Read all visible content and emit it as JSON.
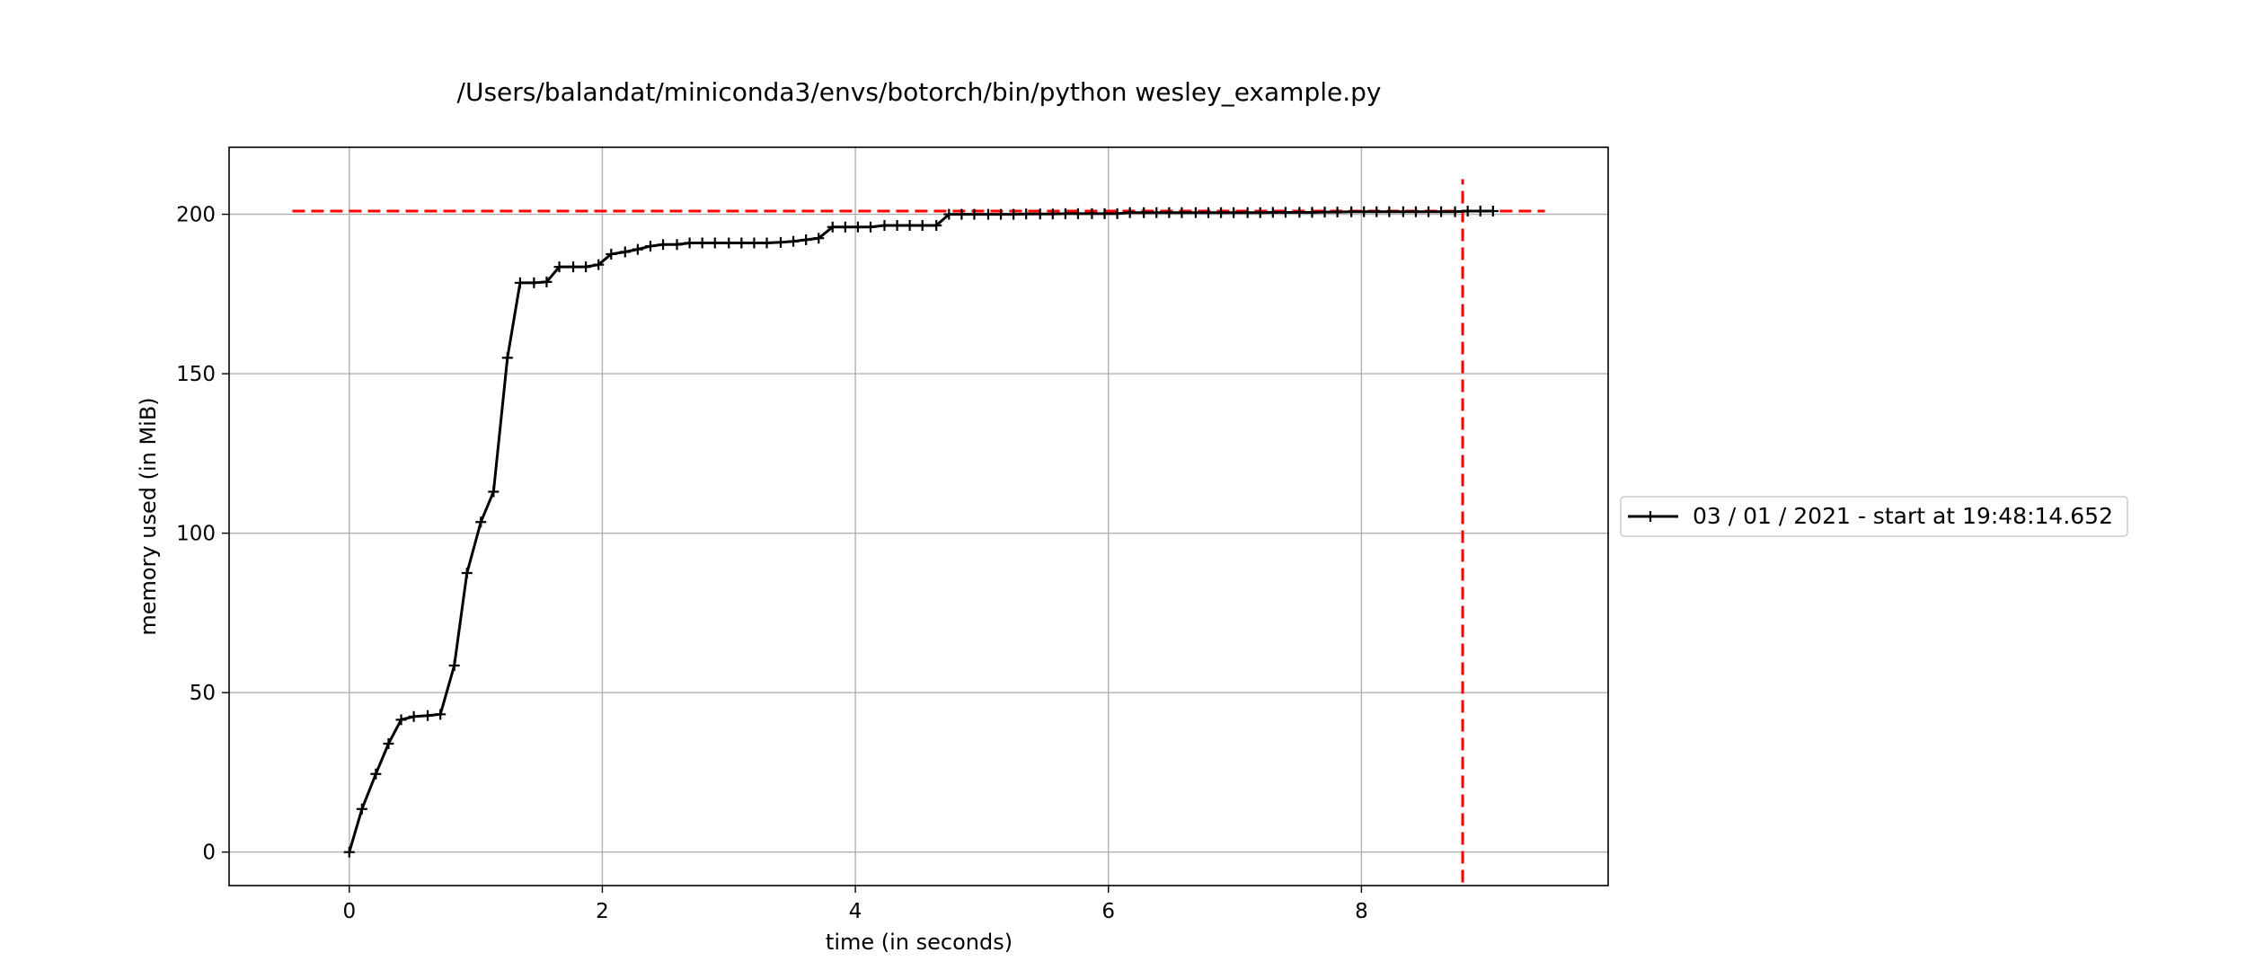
{
  "chart_data": {
    "type": "line",
    "title": "/Users/balandat/miniconda3/envs/botorch/bin/python wesley_example.py",
    "xlabel": "time (in seconds)",
    "ylabel": "memory used (in MiB)",
    "xlim": [
      -0.95,
      9.95
    ],
    "ylim": [
      -10.5,
      221
    ],
    "xticks": [
      0,
      2,
      4,
      6,
      8
    ],
    "yticks": [
      0,
      50,
      100,
      150,
      200
    ],
    "grid": true,
    "legend_placement": "right, outside plot",
    "series": [
      {
        "name": "03 / 01 / 2021 - start at 19:48:14.652",
        "color": "#000000",
        "marker": "+",
        "x": [
          0.0,
          0.1,
          0.21,
          0.31,
          0.41,
          0.51,
          0.62,
          0.72,
          0.83,
          0.93,
          1.04,
          1.14,
          1.25,
          1.35,
          1.46,
          1.56,
          1.66,
          1.77,
          1.87,
          1.97,
          2.07,
          2.18,
          2.28,
          2.38,
          2.48,
          2.59,
          2.69,
          2.79,
          2.89,
          3.0,
          3.1,
          3.2,
          3.3,
          3.41,
          3.51,
          3.61,
          3.71,
          3.82,
          3.92,
          4.02,
          4.12,
          4.23,
          4.33,
          4.43,
          4.53,
          4.64,
          4.74,
          4.84,
          4.94,
          5.05,
          5.15,
          5.25,
          5.35,
          5.46,
          5.56,
          5.66,
          5.76,
          5.87,
          5.97,
          6.07,
          6.17,
          6.28,
          6.38,
          6.48,
          6.58,
          6.69,
          6.79,
          6.89,
          6.99,
          7.1,
          7.2,
          7.3,
          7.4,
          7.51,
          7.61,
          7.71,
          7.81,
          7.92,
          8.02,
          8.12,
          8.22,
          8.33,
          8.43,
          8.53,
          8.63,
          8.74,
          8.84,
          8.94,
          9.04
        ],
        "y": [
          0,
          13.5,
          24.5,
          34,
          41.5,
          42.5,
          42.8,
          43.2,
          58.5,
          87.5,
          103.5,
          113,
          155,
          178.5,
          178.5,
          178.8,
          183.5,
          183.5,
          183.5,
          184.2,
          187.5,
          188.2,
          189,
          190,
          190.5,
          190.5,
          191,
          191,
          191,
          191,
          191,
          191,
          191,
          191.2,
          191.5,
          192,
          192.5,
          196,
          196,
          196,
          196,
          196.5,
          196.5,
          196.5,
          196.5,
          196.5,
          200,
          200,
          200,
          200,
          200,
          200,
          200.1,
          200.1,
          200.1,
          200.2,
          200.2,
          200.2,
          200.2,
          200.2,
          200.5,
          200.5,
          200.5,
          200.5,
          200.5,
          200.5,
          200.5,
          200.5,
          200.5,
          200.5,
          200.5,
          200.6,
          200.6,
          200.6,
          200.6,
          200.7,
          200.7,
          200.8,
          200.8,
          200.8,
          200.8,
          200.8,
          200.8,
          200.8,
          200.8,
          200.8,
          201,
          201,
          201
        ]
      }
    ],
    "reference_lines": [
      {
        "orientation": "horizontal",
        "y": 201,
        "x_from": -0.45,
        "x_to": 9.45,
        "color": "#ff0000",
        "style": "dashed"
      },
      {
        "orientation": "vertical",
        "x": 8.8,
        "y_from": -9.5,
        "y_to": 211,
        "color": "#ff0000",
        "style": "dashed"
      }
    ]
  }
}
